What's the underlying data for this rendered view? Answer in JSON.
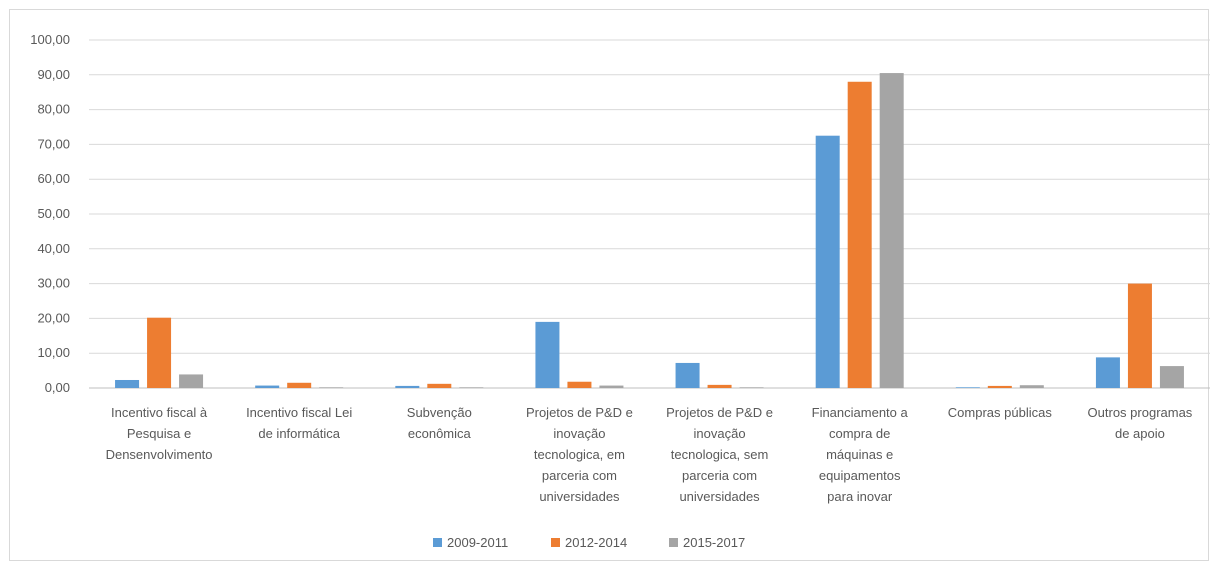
{
  "chart_data": {
    "type": "bar",
    "title": "",
    "xlabel": "",
    "ylabel": "",
    "ylim": [
      0,
      100
    ],
    "yticks": [
      "0,00",
      "10,00",
      "20,00",
      "30,00",
      "40,00",
      "50,00",
      "60,00",
      "70,00",
      "80,00",
      "90,00",
      "100,00"
    ],
    "grid": true,
    "legend_position": "bottom",
    "categories": [
      [
        "Incentivo fiscal à",
        "Pesquisa e",
        "Densenvolvimento"
      ],
      [
        "Incentivo fiscal Lei",
        "de informática"
      ],
      [
        "Subvenção",
        "econômica"
      ],
      [
        "Projetos de P&D e",
        "inovação",
        "tecnologica, em",
        "parceria com",
        "universidades"
      ],
      [
        "Projetos de P&D e",
        "inovação",
        "tecnologica, sem",
        "parceria com",
        "universidades"
      ],
      [
        "Financiamento a",
        "compra de",
        "máquinas e",
        "equipamentos",
        "para inovar"
      ],
      [
        "Compras públicas"
      ],
      [
        "Outros programas",
        "de apoio"
      ]
    ],
    "series": [
      {
        "name": "2009-2011",
        "color": "#5b9bd5",
        "values": [
          2.3,
          0.7,
          0.6,
          19.0,
          7.2,
          72.5,
          0.2,
          8.8
        ]
      },
      {
        "name": "2012-2014",
        "color": "#ed7d31",
        "values": [
          20.2,
          1.5,
          1.2,
          1.8,
          0.9,
          88.0,
          0.6,
          30.0
        ]
      },
      {
        "name": "2015-2017",
        "color": "#a5a5a5",
        "values": [
          3.9,
          0.2,
          0.2,
          0.7,
          0.2,
          90.5,
          0.8,
          6.3
        ]
      }
    ]
  }
}
